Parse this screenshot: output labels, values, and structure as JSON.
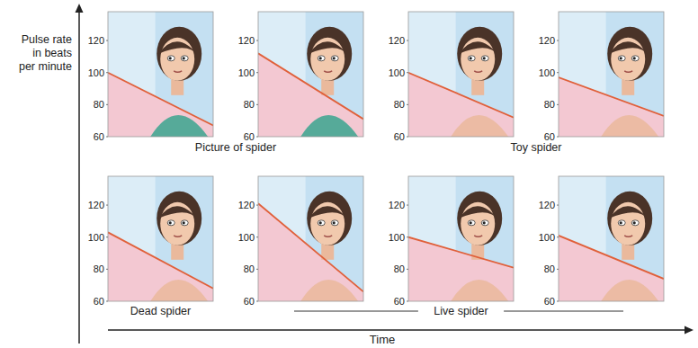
{
  "y_label": [
    "Pulse rate",
    "in beats",
    "per minute"
  ],
  "x_label": "Time",
  "chart_data": [
    {
      "type": "line",
      "xlabel": "Picture of spider",
      "x": [
        0,
        1
      ],
      "xlim": [
        0,
        1
      ],
      "ylim": [
        60,
        138
      ],
      "yticks": [
        60,
        80,
        100,
        120
      ],
      "tick_labels": "y",
      "color": "#e0603a",
      "values": [
        100,
        67
      ]
    },
    {
      "type": "line",
      "x": [
        0,
        1
      ],
      "xlim": [
        0,
        1
      ],
      "ylim": [
        60,
        138
      ],
      "yticks": [
        60,
        80,
        100,
        120
      ],
      "tick_labels": "y",
      "color": "#e0603a",
      "values": [
        112,
        71
      ]
    },
    {
      "type": "line",
      "xlabel": "Toy spider",
      "x": [
        0,
        1
      ],
      "xlim": [
        0,
        1
      ],
      "ylim": [
        60,
        138
      ],
      "yticks": [
        60,
        80,
        100,
        120
      ],
      "tick_labels": "y",
      "color": "#e0603a",
      "values": [
        100,
        72
      ]
    },
    {
      "type": "line",
      "x": [
        0,
        1
      ],
      "xlim": [
        0,
        1
      ],
      "ylim": [
        60,
        138
      ],
      "yticks": [
        60,
        80,
        100,
        120
      ],
      "tick_labels": "y",
      "color": "#e0603a",
      "values": [
        97,
        73
      ]
    },
    {
      "type": "line",
      "xlabel": "Dead spider",
      "x": [
        0,
        1
      ],
      "xlim": [
        0,
        1
      ],
      "ylim": [
        60,
        138
      ],
      "yticks": [
        60,
        80,
        100,
        120
      ],
      "tick_labels": "y",
      "color": "#e0603a",
      "values": [
        103,
        68
      ]
    },
    {
      "type": "line",
      "xlabel": "Live spider",
      "x": [
        0,
        1
      ],
      "xlim": [
        0,
        1
      ],
      "ylim": [
        60,
        138
      ],
      "yticks": [
        60,
        80,
        100,
        120
      ],
      "tick_labels": "y",
      "color": "#e0603a",
      "values": [
        121,
        66
      ]
    },
    {
      "type": "line",
      "x": [
        0,
        1
      ],
      "xlim": [
        0,
        1
      ],
      "ylim": [
        60,
        138
      ],
      "yticks": [
        60,
        80,
        100,
        120
      ],
      "tick_labels": "y",
      "color": "#e0603a",
      "values": [
        100,
        81
      ]
    },
    {
      "type": "line",
      "x": [
        0,
        1
      ],
      "xlim": [
        0,
        1
      ],
      "ylim": [
        60,
        138
      ],
      "yticks": [
        60,
        80,
        100,
        120
      ],
      "tick_labels": "y",
      "color": "#e0603a",
      "values": [
        101,
        74
      ]
    }
  ]
}
